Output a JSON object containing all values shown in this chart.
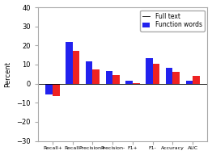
{
  "categories": [
    "Recall+",
    "Recall-",
    "Precision+",
    "Precision-",
    "F1+",
    "F1-",
    "Accuracy",
    "AUC"
  ],
  "full_text": [
    -5.5,
    22.0,
    11.5,
    6.5,
    1.5,
    13.5,
    8.5,
    1.5
  ],
  "function_words": [
    -6.5,
    17.0,
    7.5,
    4.5,
    0.2,
    10.5,
    6.0,
    4.0
  ],
  "bar_color_full": "#2222ee",
  "bar_color_func": "#ee2222",
  "ylim": [
    -30,
    40
  ],
  "yticks": [
    -30,
    -20,
    -10,
    0,
    10,
    20,
    30,
    40
  ],
  "ylabel": "Percent",
  "legend_labels": [
    "Full text",
    "Function words"
  ],
  "bar_width": 0.35,
  "background_color": "#ffffff"
}
